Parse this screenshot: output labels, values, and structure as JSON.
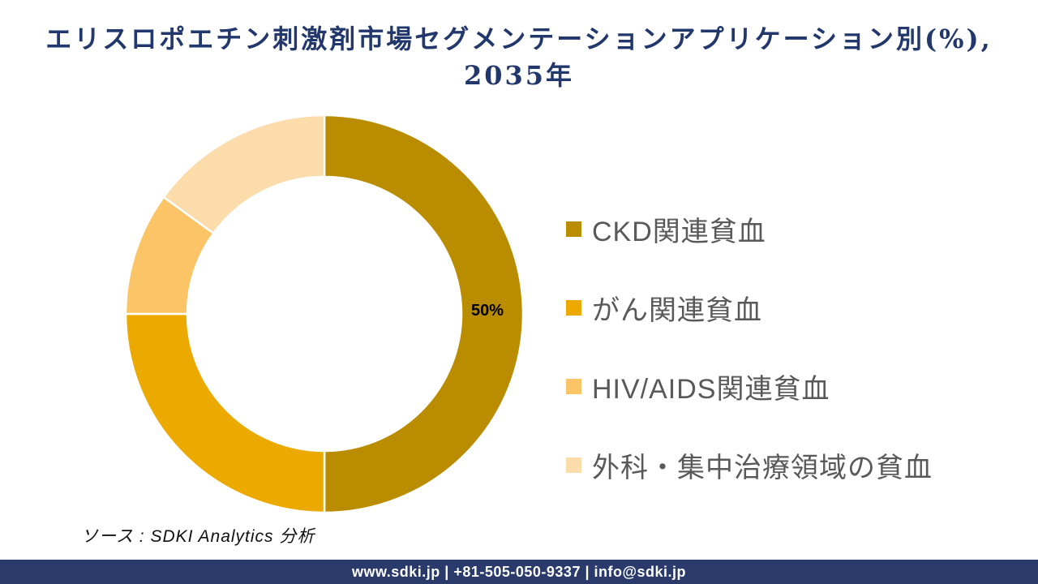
{
  "title": {
    "line1": "エリスロポエチン刺激剤市場セグメンテーションアプリケーション別(%),",
    "line2": "2035年",
    "color": "#22376B"
  },
  "chart_data": {
    "type": "pie",
    "subtype": "donut",
    "title": "エリスロポエチン刺激剤市場セグメンテーションアプリケーション別(%), 2035年",
    "unit": "%",
    "start_angle_deg": 0,
    "direction": "clockwise",
    "hole_radius_ratio": 0.69,
    "legend_position": "right",
    "data_label_color": "#000000",
    "separator_color": "#FFFFFF",
    "segments": [
      {
        "label": "CKD関連貧血",
        "value": 50,
        "color": "#BA8D00",
        "data_label": "50%"
      },
      {
        "label": "がん関連貧血",
        "value": 25,
        "color": "#ECAA00",
        "data_label": ""
      },
      {
        "label": "HIV/AIDS関連貧血",
        "value": 10,
        "color": "#FBC466",
        "data_label": ""
      },
      {
        "label": "外科・集中治療領域の貧血",
        "value": 15,
        "color": "#FCDCAB",
        "data_label": ""
      }
    ]
  },
  "source": {
    "text": "ソース : SDKI Analytics 分析"
  },
  "footer": {
    "text": "www.sdki.jp | +81-505-050-9337 | info@sdki.jp",
    "background": "#293A6B"
  }
}
